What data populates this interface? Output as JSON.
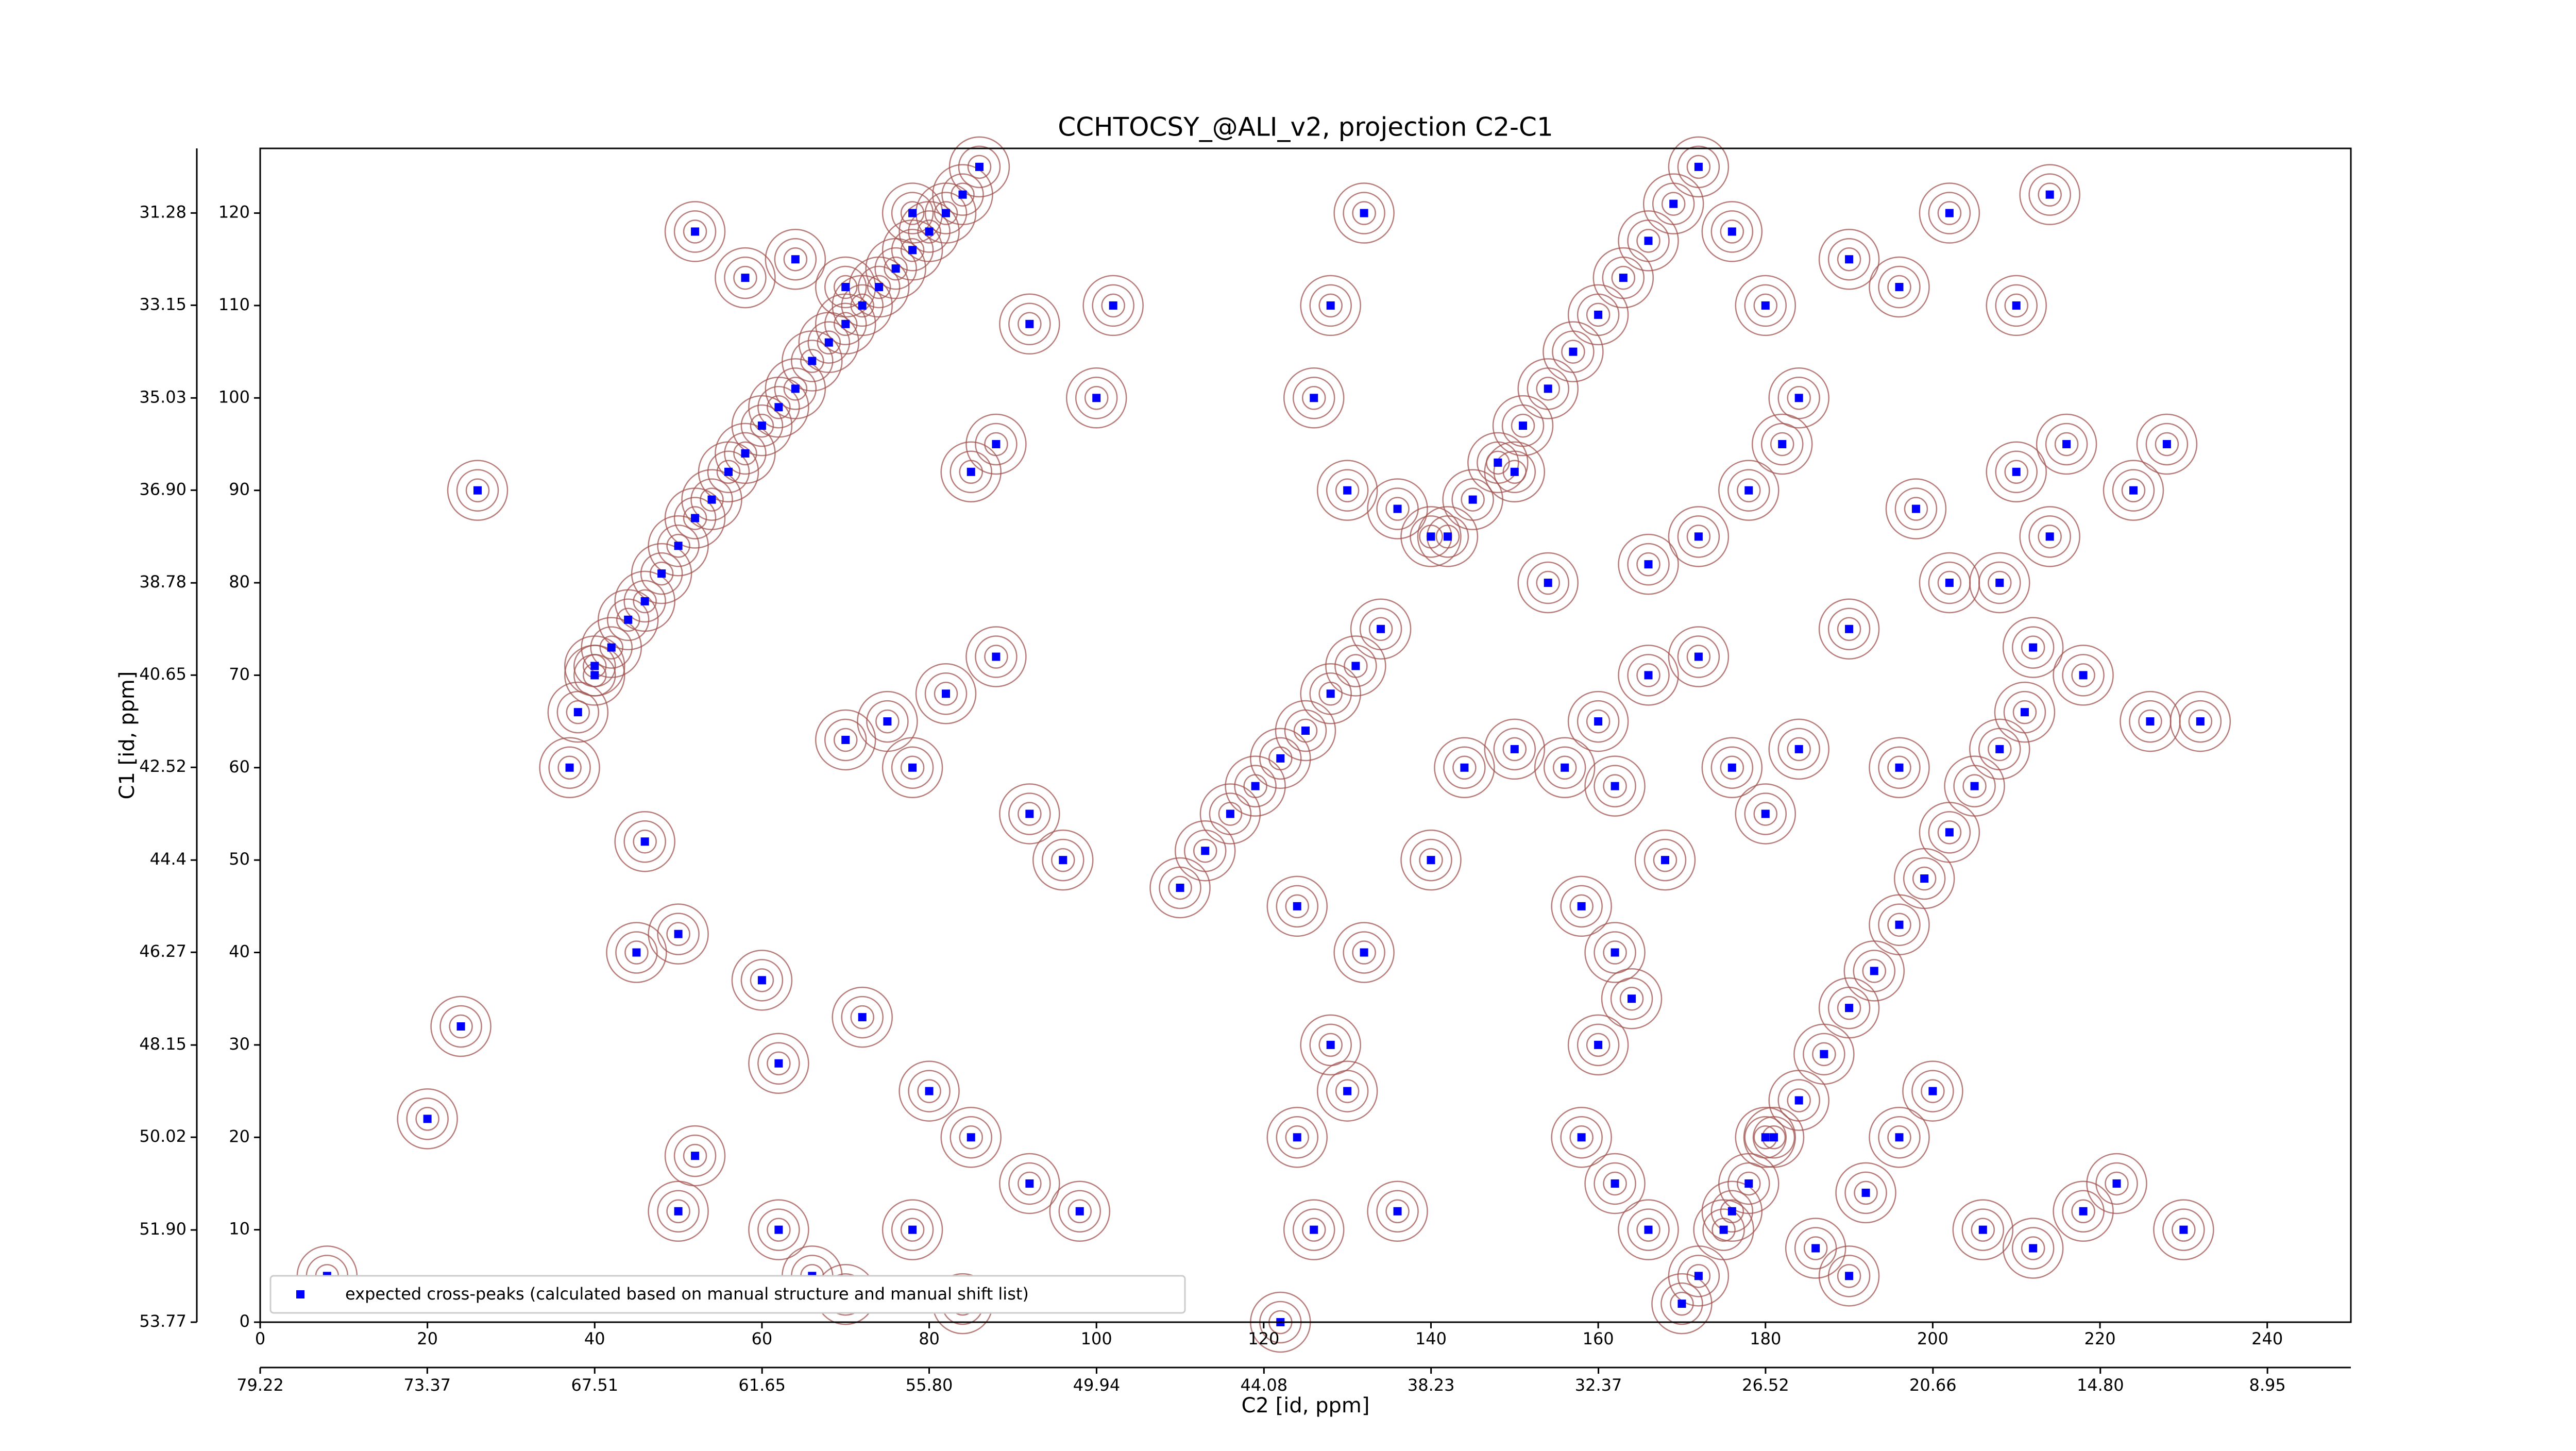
{
  "chart_data": {
    "type": "scatter",
    "title": "CCHTOCSY_@ALI_v2, projection C2-C1",
    "xlabel": "C2 [id, ppm]",
    "ylabel": "C1 [id, ppm]",
    "xlim": [
      0,
      250
    ],
    "ylim": [
      0,
      127
    ],
    "xticks": [
      0,
      20,
      40,
      60,
      80,
      100,
      120,
      140,
      160,
      180,
      200,
      220,
      240
    ],
    "yticks": [
      0,
      10,
      20,
      30,
      40,
      50,
      60,
      70,
      80,
      90,
      100,
      110,
      120
    ],
    "x2lim": [
      79.22,
      6.03
    ],
    "x2ticks": [
      79.22,
      73.37,
      67.51,
      61.65,
      {
        "value": 55.8,
        "label": "55.80"
      },
      49.94,
      44.08,
      38.23,
      32.37,
      26.52,
      20.66,
      {
        "value": 14.8,
        "label": "14.80"
      },
      8.95
    ],
    "y2lim": [
      53.77,
      29.97
    ],
    "y2ticks": [
      53.77,
      {
        "value": 51.9,
        "label": "51.90"
      },
      50.02,
      48.15,
      46.27,
      44.4,
      42.52,
      40.65,
      38.78,
      {
        "value": 36.9,
        "label": "36.90"
      },
      35.03,
      33.15,
      31.28
    ],
    "legend": "lower left",
    "series": [
      {
        "name": "expected cross-peaks (calculated based on manual structure and manual shift list)",
        "color": "#0000ff",
        "x": [
          38,
          40,
          42,
          44,
          46,
          48,
          50,
          52,
          54,
          56,
          58,
          60,
          62,
          64,
          66,
          68,
          70,
          72,
          74,
          76,
          78,
          80,
          82,
          84,
          86,
          110,
          113,
          116,
          119,
          122,
          125,
          128,
          131,
          134,
          172,
          175,
          178,
          181,
          184,
          187,
          190,
          193,
          196,
          199,
          202,
          205,
          208,
          211,
          142,
          145,
          148,
          151,
          154,
          157,
          160,
          163,
          166,
          169,
          172,
          26,
          40,
          37,
          46,
          50,
          45,
          60,
          62,
          70,
          75,
          78,
          82,
          88,
          92,
          96,
          72,
          80,
          85,
          92,
          98,
          62,
          66,
          70,
          50,
          52,
          78,
          84,
          100,
          102,
          92,
          88,
          85,
          52,
          58,
          64,
          70,
          78,
          24,
          20,
          8,
          122,
          126,
          124,
          128,
          130,
          136,
          140,
          132,
          124,
          144,
          150,
          156,
          162,
          160,
          166,
          172,
          176,
          180,
          184,
          168,
          158,
          162,
          164,
          160,
          158,
          162,
          166,
          170,
          186,
          192,
          196,
          200,
          206,
          212,
          218,
          222,
          230,
          232,
          226,
          218,
          212,
          208,
          214,
          210,
          198,
          202,
          224,
          228,
          216,
          184,
          180,
          176,
          190,
          196,
          202,
          210,
          214,
          132,
          128,
          126,
          130,
          136,
          140,
          150,
          154,
          166,
          172,
          178,
          182,
          196,
          190,
          180,
          176,
          190
        ],
        "y": [
          66,
          70,
          73,
          76,
          78,
          81,
          84,
          87,
          89,
          92,
          94,
          97,
          99,
          101,
          104,
          106,
          108,
          110,
          112,
          114,
          116,
          118,
          120,
          122,
          125,
          47,
          51,
          55,
          58,
          61,
          64,
          68,
          71,
          75,
          5,
          10,
          15,
          20,
          24,
          29,
          34,
          38,
          43,
          48,
          53,
          58,
          62,
          66,
          85,
          89,
          93,
          97,
          101,
          105,
          109,
          113,
          117,
          121,
          125,
          90,
          71,
          60,
          52,
          42,
          40,
          37,
          28,
          63,
          65,
          60,
          68,
          72,
          55,
          50,
          33,
          25,
          20,
          15,
          12,
          10,
          5,
          3,
          12,
          18,
          10,
          2,
          100,
          110,
          108,
          95,
          92,
          118,
          113,
          115,
          112,
          120,
          32,
          22,
          5,
          0,
          10,
          20,
          30,
          25,
          12,
          50,
          40,
          45,
          60,
          62,
          60,
          58,
          65,
          70,
          72,
          60,
          55,
          62,
          50,
          45,
          40,
          35,
          30,
          20,
          15,
          10,
          2,
          8,
          14,
          20,
          25,
          10,
          8,
          12,
          15,
          10,
          65,
          65,
          70,
          73,
          80,
          85,
          92,
          88,
          80,
          90,
          95,
          95,
          100,
          110,
          118,
          115,
          112,
          120,
          110,
          122,
          120,
          110,
          100,
          90,
          88,
          85,
          92,
          80,
          82,
          85,
          90,
          95,
          60,
          75,
          20,
          12,
          5
        ]
      }
    ]
  }
}
